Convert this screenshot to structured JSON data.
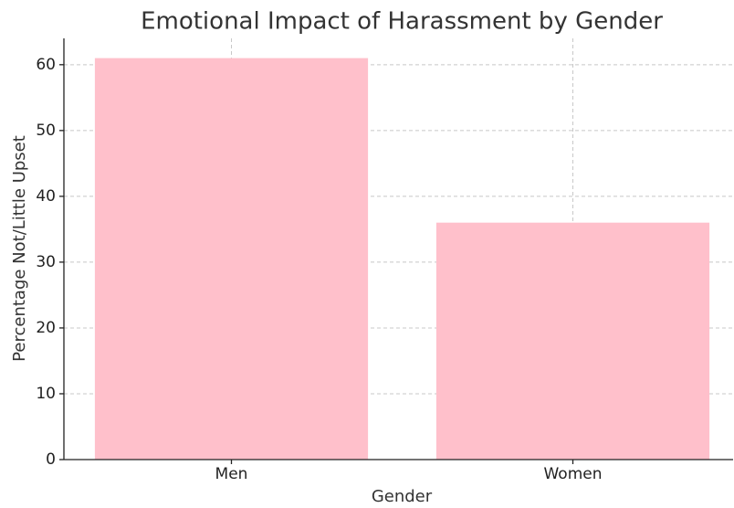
{
  "chart_data": {
    "type": "bar",
    "title": "Emotional Impact of Harassment by Gender",
    "x_label": "Gender",
    "y_label": "Percentage Not/Little Upset",
    "categories": [
      "Men",
      "Women"
    ],
    "values": [
      61,
      36
    ],
    "color": "#ffc0cb",
    "ylim": [
      0,
      64
    ],
    "yticks": [
      0,
      10,
      20,
      30,
      40,
      50,
      60
    ],
    "grid": true
  }
}
